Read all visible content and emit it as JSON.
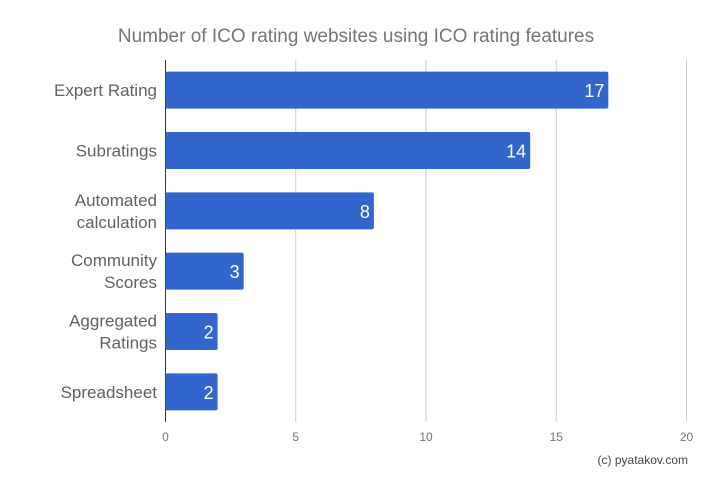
{
  "chart_data": {
    "type": "bar",
    "orientation": "horizontal",
    "title": "Number of ICO rating websites using ICO rating features",
    "categories": [
      [
        "Expert Rating"
      ],
      [
        "Subratings"
      ],
      [
        "Automated",
        "calculation"
      ],
      [
        "Community",
        "Scores"
      ],
      [
        "Aggregated",
        "Ratings"
      ],
      [
        "Spreadsheet"
      ]
    ],
    "values": [
      17,
      14,
      8,
      3,
      2,
      2
    ],
    "xlim": [
      0,
      20
    ],
    "xticks": [
      0,
      5,
      10,
      15,
      20
    ],
    "grid": true,
    "legend": "none",
    "bar_color": "#3366cc",
    "data_labels": true
  },
  "credit": "(c) pyatakov.com"
}
